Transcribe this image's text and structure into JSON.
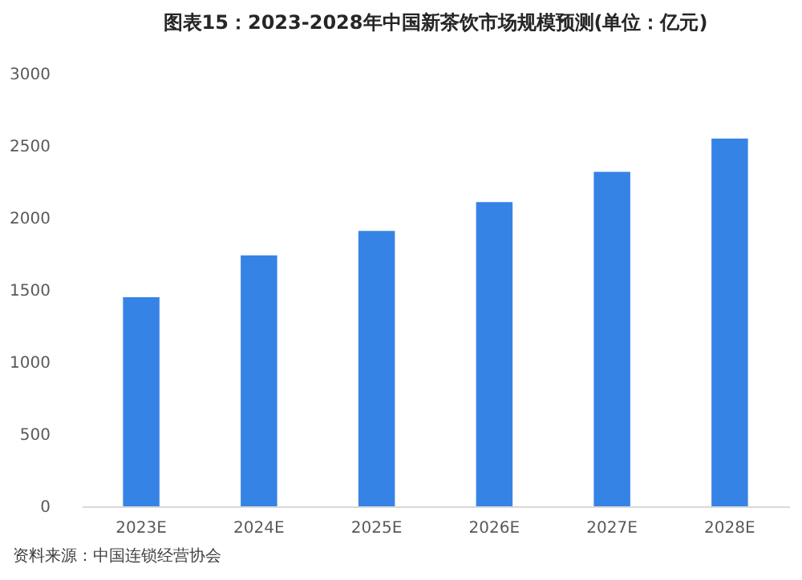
{
  "chart_data": {
    "type": "bar",
    "title": "图表15：2023-2028年中国新茶饮市场规模预测(单位：亿元)",
    "categories": [
      "2023E",
      "2024E",
      "2025E",
      "2026E",
      "2027E",
      "2028E"
    ],
    "values": [
      1450,
      1740,
      1910,
      2110,
      2320,
      2550
    ],
    "color": "#3683e6",
    "ylim": [
      0,
      3000
    ],
    "yticks": [
      0,
      500,
      1000,
      1500,
      2000,
      2500,
      3000
    ],
    "grid": false,
    "annotations": [
      "资料来源：中国连锁经营协会"
    ]
  }
}
